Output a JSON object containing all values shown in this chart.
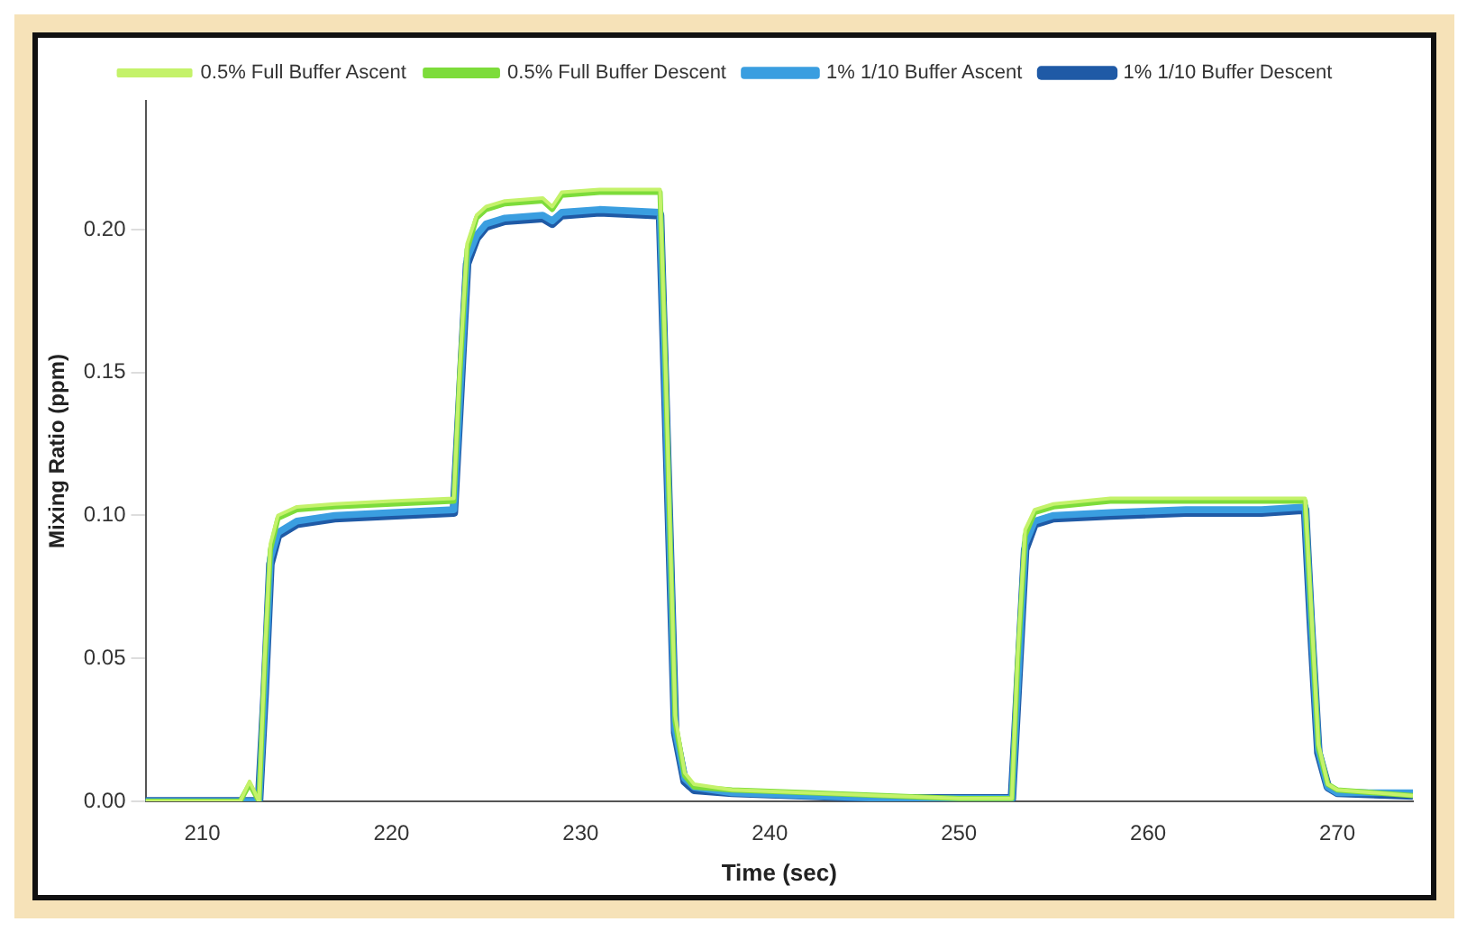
{
  "chart_data": {
    "type": "line",
    "xlabel": "Time (sec)",
    "ylabel": "Mixing Ratio (ppm)",
    "x": [
      207,
      212,
      212.5,
      213,
      213.3,
      213.6,
      214,
      215,
      217,
      220,
      223.3,
      223.6,
      224,
      224.5,
      225,
      226,
      228,
      228.5,
      229,
      231,
      234.2,
      234.5,
      235,
      235.5,
      236,
      238,
      242,
      246,
      250,
      252.8,
      253.1,
      253.5,
      254,
      255,
      258,
      262,
      266,
      268.3,
      268.6,
      269,
      269.5,
      270,
      274
    ],
    "series": [
      {
        "name": "0.5% Full Buffer Ascent",
        "color": "#c4f26a",
        "values": [
          0,
          0,
          0.007,
          0,
          0.05,
          0.09,
          0.1,
          0.103,
          0.104,
          0.105,
          0.106,
          0.15,
          0.195,
          0.205,
          0.208,
          0.21,
          0.211,
          0.208,
          0.213,
          0.214,
          0.214,
          0.15,
          0.03,
          0.01,
          0.006,
          0.004,
          0.003,
          0.002,
          0.001,
          0.001,
          0.05,
          0.095,
          0.102,
          0.104,
          0.106,
          0.106,
          0.106,
          0.106,
          0.07,
          0.02,
          0.006,
          0.004,
          0.002
        ]
      },
      {
        "name": "0.5% Full Buffer Descent",
        "color": "#7ddc3a",
        "values": [
          0,
          0,
          0.006,
          0,
          0.048,
          0.088,
          0.099,
          0.102,
          0.103,
          0.104,
          0.105,
          0.148,
          0.193,
          0.204,
          0.207,
          0.209,
          0.21,
          0.207,
          0.212,
          0.213,
          0.213,
          0.148,
          0.028,
          0.009,
          0.005,
          0.004,
          0.003,
          0.002,
          0.001,
          0.001,
          0.048,
          0.093,
          0.101,
          0.103,
          0.105,
          0.105,
          0.105,
          0.105,
          0.068,
          0.019,
          0.006,
          0.004,
          0.002
        ]
      },
      {
        "name": "1% 1/10 Buffer Ascent",
        "color": "#3a9ee0",
        "values": [
          0,
          0,
          0,
          0,
          0.04,
          0.085,
          0.094,
          0.098,
          0.1,
          0.101,
          0.102,
          0.14,
          0.19,
          0.198,
          0.202,
          0.204,
          0.205,
          0.203,
          0.206,
          0.207,
          0.206,
          0.14,
          0.025,
          0.008,
          0.005,
          0.003,
          0.002,
          0.001,
          0.001,
          0.001,
          0.04,
          0.09,
          0.098,
          0.1,
          0.101,
          0.102,
          0.102,
          0.103,
          0.065,
          0.018,
          0.005,
          0.003,
          0.003
        ]
      },
      {
        "name": "1% 1/10 Buffer Descent",
        "color": "#1f5aa6",
        "values": [
          0,
          0,
          0,
          0,
          0.038,
          0.083,
          0.093,
          0.097,
          0.099,
          0.1,
          0.101,
          0.138,
          0.188,
          0.197,
          0.201,
          0.203,
          0.204,
          0.202,
          0.205,
          0.206,
          0.205,
          0.138,
          0.024,
          0.007,
          0.004,
          0.003,
          0.002,
          0.001,
          0.001,
          0.001,
          0.038,
          0.088,
          0.097,
          0.099,
          0.1,
          0.101,
          0.101,
          0.102,
          0.063,
          0.017,
          0.005,
          0.003,
          0.002
        ]
      }
    ],
    "xlim": [
      207,
      274
    ],
    "xticks": [
      210,
      220,
      230,
      240,
      250,
      260,
      270
    ],
    "ylim": [
      0,
      0.245
    ],
    "yticks": [
      {
        "value": 0,
        "label": "0.00"
      },
      {
        "value": 0.05,
        "label": "0.05"
      },
      {
        "value": 0.1,
        "label": "0.10"
      },
      {
        "value": 0.15,
        "label": "0.15"
      },
      {
        "value": 0.2,
        "label": "0.20"
      }
    ],
    "grid": false,
    "legend": "top",
    "marker": "none",
    "line_style": "solid"
  }
}
